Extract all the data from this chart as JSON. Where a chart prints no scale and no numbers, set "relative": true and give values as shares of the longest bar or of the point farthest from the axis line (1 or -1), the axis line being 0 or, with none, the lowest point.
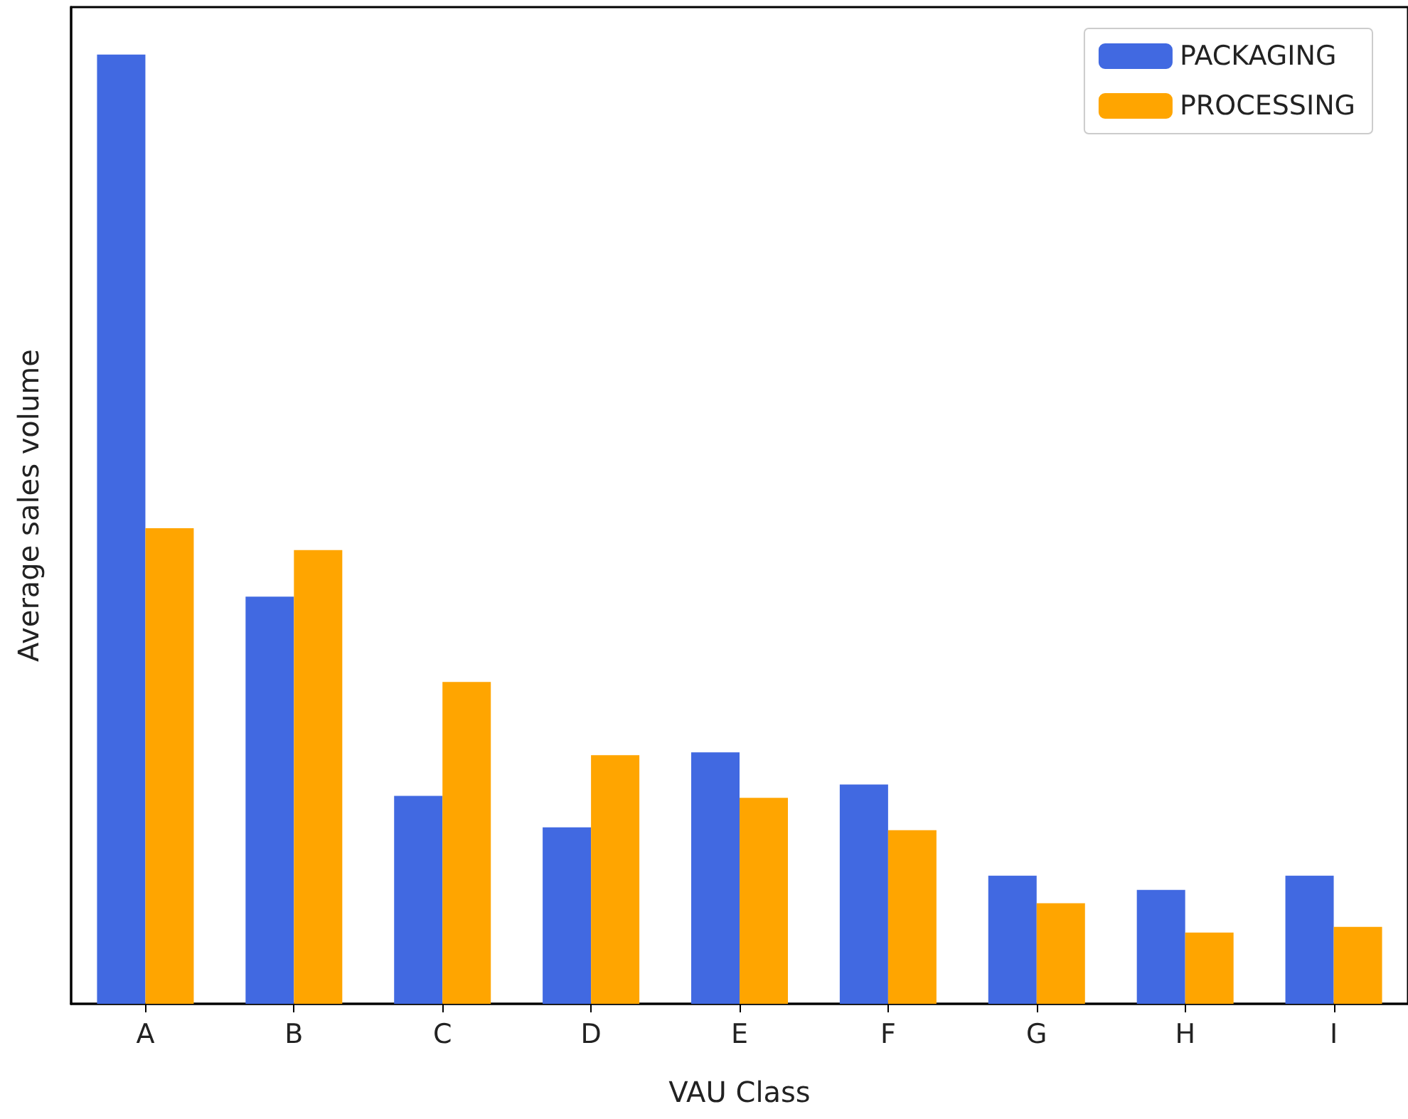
{
  "chart_data": {
    "type": "bar",
    "xlabel": "VAU Class",
    "ylabel": "Average sales volume",
    "relative": true,
    "legend": "top right",
    "grid": false,
    "categories": [
      "A",
      "B",
      "C",
      "D",
      "E",
      "F",
      "G",
      "H",
      "I"
    ],
    "series": [
      {
        "name": "PACKAGING",
        "color": "#4169e1",
        "values": [
          1,
          0.429,
          0.219,
          0.186,
          0.265,
          0.231,
          0.135,
          0.12,
          0.135
        ]
      },
      {
        "name": "PROCESSING",
        "color": "#ffa500",
        "values": [
          0.501,
          0.478,
          0.339,
          0.262,
          0.217,
          0.183,
          0.106,
          0.075,
          0.081
        ]
      }
    ]
  }
}
